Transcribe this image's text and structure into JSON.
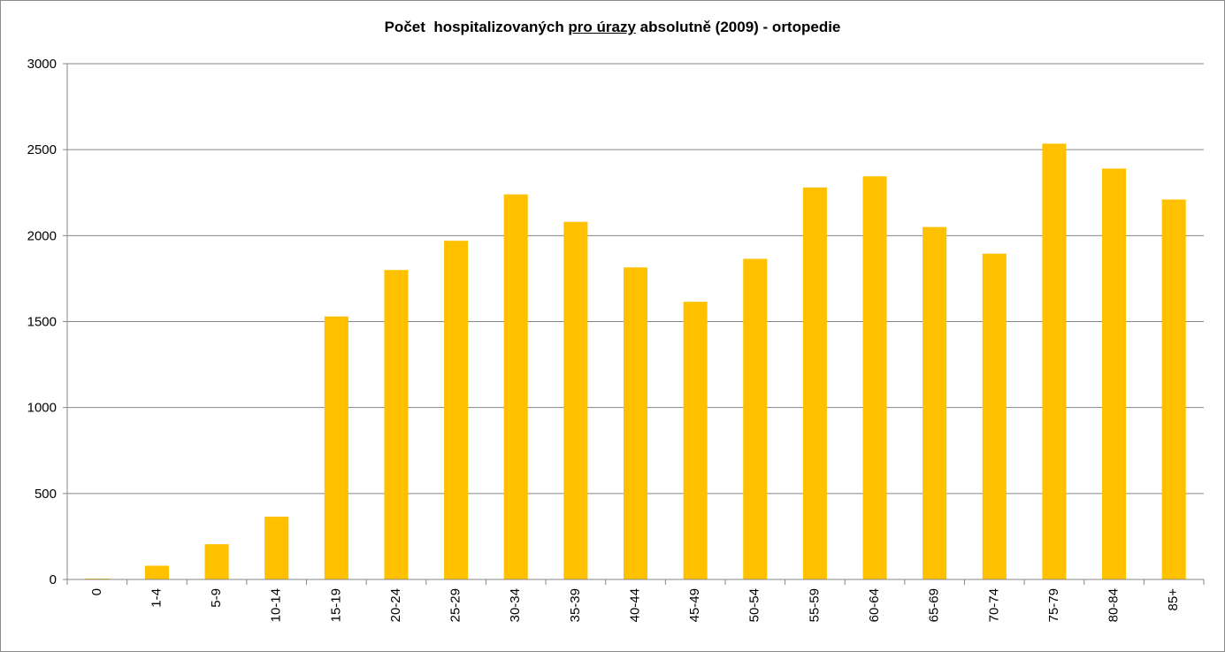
{
  "chart_data": {
    "type": "bar",
    "title_parts": {
      "before": "Počet  hospitalizovaných ",
      "underlined": "pro úrazy",
      "after": " absolutně (2009) - ortopedie"
    },
    "categories": [
      "0",
      "1-4",
      "5-9",
      "10-14",
      "15-19",
      "20-24",
      "25-29",
      "30-34",
      "35-39",
      "40-44",
      "45-49",
      "50-54",
      "55-59",
      "60-64",
      "65-69",
      "70-74",
      "75-79",
      "80-84",
      "85+"
    ],
    "values": [
      5,
      80,
      205,
      365,
      1530,
      1800,
      1970,
      2240,
      2080,
      1815,
      1615,
      1865,
      2280,
      2345,
      2050,
      1895,
      2535,
      2390,
      2210
    ],
    "y_ticks": [
      "0",
      "500",
      "1000",
      "1500",
      "2000",
      "2500",
      "3000"
    ],
    "ylim": [
      0,
      3000
    ],
    "grid": true,
    "legend": "none",
    "bar_color": "#FFC000",
    "grid_color": "#868686"
  }
}
